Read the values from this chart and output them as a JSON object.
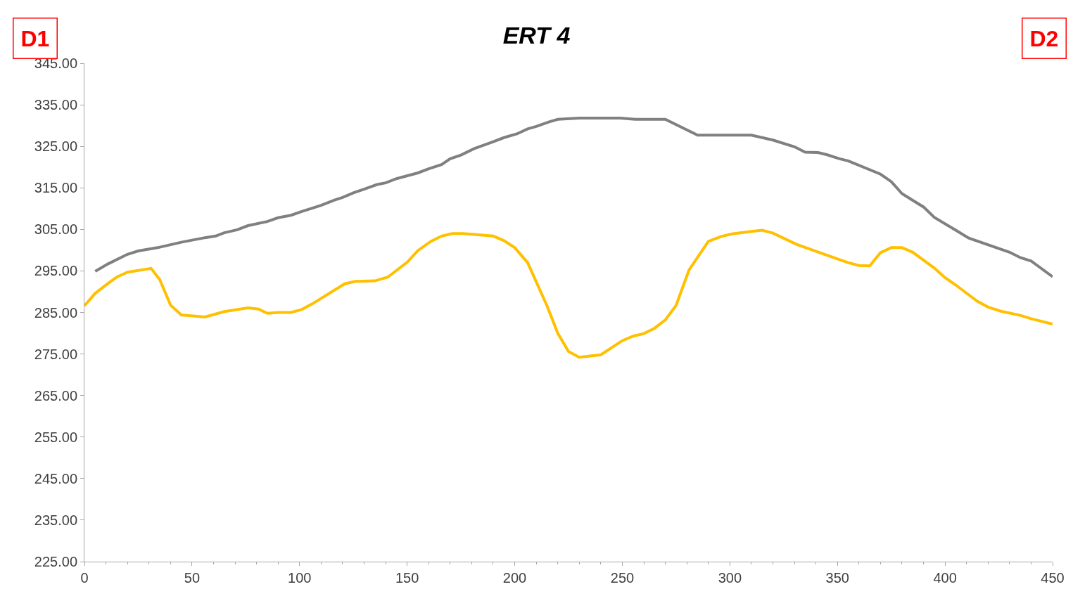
{
  "chart_data": {
    "type": "line",
    "title": "ERT 4",
    "annotations": [
      "D1",
      "D2"
    ],
    "xlim": [
      0,
      450
    ],
    "xticks": [
      0,
      50,
      100,
      150,
      200,
      250,
      300,
      350,
      400,
      450
    ],
    "ylim": [
      225,
      345
    ],
    "yticks": [
      {
        "value": 225,
        "label": "225.00"
      },
      {
        "value": 235,
        "label": "235.00"
      },
      {
        "value": 245,
        "label": "245.00"
      },
      {
        "value": 255,
        "label": "255.00"
      },
      {
        "value": 265,
        "label": "265.00"
      },
      {
        "value": 275,
        "label": "275.00"
      },
      {
        "value": 285,
        "label": "285.00"
      },
      {
        "value": 295,
        "label": "295.00"
      },
      {
        "value": 305,
        "label": "305.00"
      },
      {
        "value": 315,
        "label": "315.00"
      },
      {
        "value": 325,
        "label": "325.00"
      },
      {
        "value": 335,
        "label": "335.00"
      },
      {
        "value": 345,
        "label": "345.00"
      }
    ],
    "grid": false,
    "marker": "none",
    "line_style": "solid",
    "series": [
      {
        "color": "#808080",
        "x": [
          5,
          11,
          20,
          25,
          34,
          45,
          56,
          61,
          65,
          71,
          76,
          85,
          90,
          96,
          101,
          110,
          116,
          120,
          125,
          130,
          136,
          140,
          145,
          155,
          160,
          166,
          170,
          175,
          181,
          190,
          195,
          201,
          206,
          210,
          216,
          220,
          230,
          249,
          256,
          270,
          285,
          310,
          320,
          330,
          335,
          341,
          345,
          351,
          355,
          370,
          375,
          380,
          385,
          390,
          395,
          405,
          411,
          430,
          435,
          440,
          450
        ],
        "values": [
          294.9,
          296.7,
          299.0,
          299.8,
          300.6,
          301.9,
          303.0,
          303.4,
          304.2,
          304.9,
          305.9,
          306.9,
          307.8,
          308.4,
          309.3,
          310.8,
          312.0,
          312.7,
          313.8,
          314.7,
          315.8,
          316.2,
          317.2,
          318.6,
          319.6,
          320.6,
          322.0,
          322.9,
          324.4,
          326.1,
          327.1,
          328.0,
          329.2,
          329.8,
          330.9,
          331.5,
          331.8,
          331.8,
          331.5,
          331.5,
          327.7,
          327.7,
          326.5,
          324.9,
          323.6,
          323.5,
          323.0,
          322.0,
          321.5,
          318.3,
          316.5,
          313.6,
          312.0,
          310.4,
          307.9,
          304.8,
          302.9,
          299.5,
          298.2,
          297.4,
          293.6
        ]
      },
      {
        "color": "#ffc000",
        "x": [
          0,
          5,
          11,
          15,
          20,
          31,
          35,
          40,
          45,
          56,
          65,
          76,
          81,
          85,
          90,
          96,
          101,
          106,
          121,
          126,
          135,
          141,
          150,
          155,
          161,
          166,
          171,
          176,
          190,
          195,
          200,
          206,
          215,
          220,
          225,
          230,
          240,
          250,
          255,
          260,
          265,
          270,
          275,
          281,
          290,
          296,
          301,
          310,
          315,
          320,
          331,
          350,
          355,
          360,
          365,
          370,
          375,
          380,
          385,
          395,
          400,
          405,
          415,
          420,
          426,
          435,
          440,
          450
        ],
        "values": [
          286.6,
          289.6,
          292.0,
          293.5,
          294.7,
          295.6,
          292.9,
          286.8,
          284.4,
          283.9,
          285.2,
          286.1,
          285.8,
          284.8,
          285.0,
          285.0,
          285.7,
          287.1,
          291.9,
          292.5,
          292.6,
          293.5,
          297.1,
          299.9,
          302.1,
          303.4,
          304.0,
          304.0,
          303.4,
          302.3,
          300.6,
          297.0,
          286.6,
          280.0,
          275.6,
          274.2,
          274.8,
          278.2,
          279.3,
          279.9,
          281.2,
          283.2,
          286.7,
          295.2,
          302.1,
          303.3,
          303.9,
          304.5,
          304.8,
          304.1,
          301.4,
          297.9,
          297.0,
          296.3,
          296.2,
          299.4,
          300.6,
          300.6,
          299.5,
          295.7,
          293.4,
          291.6,
          287.7,
          286.3,
          285.3,
          284.3,
          283.5,
          282.2
        ]
      }
    ]
  }
}
